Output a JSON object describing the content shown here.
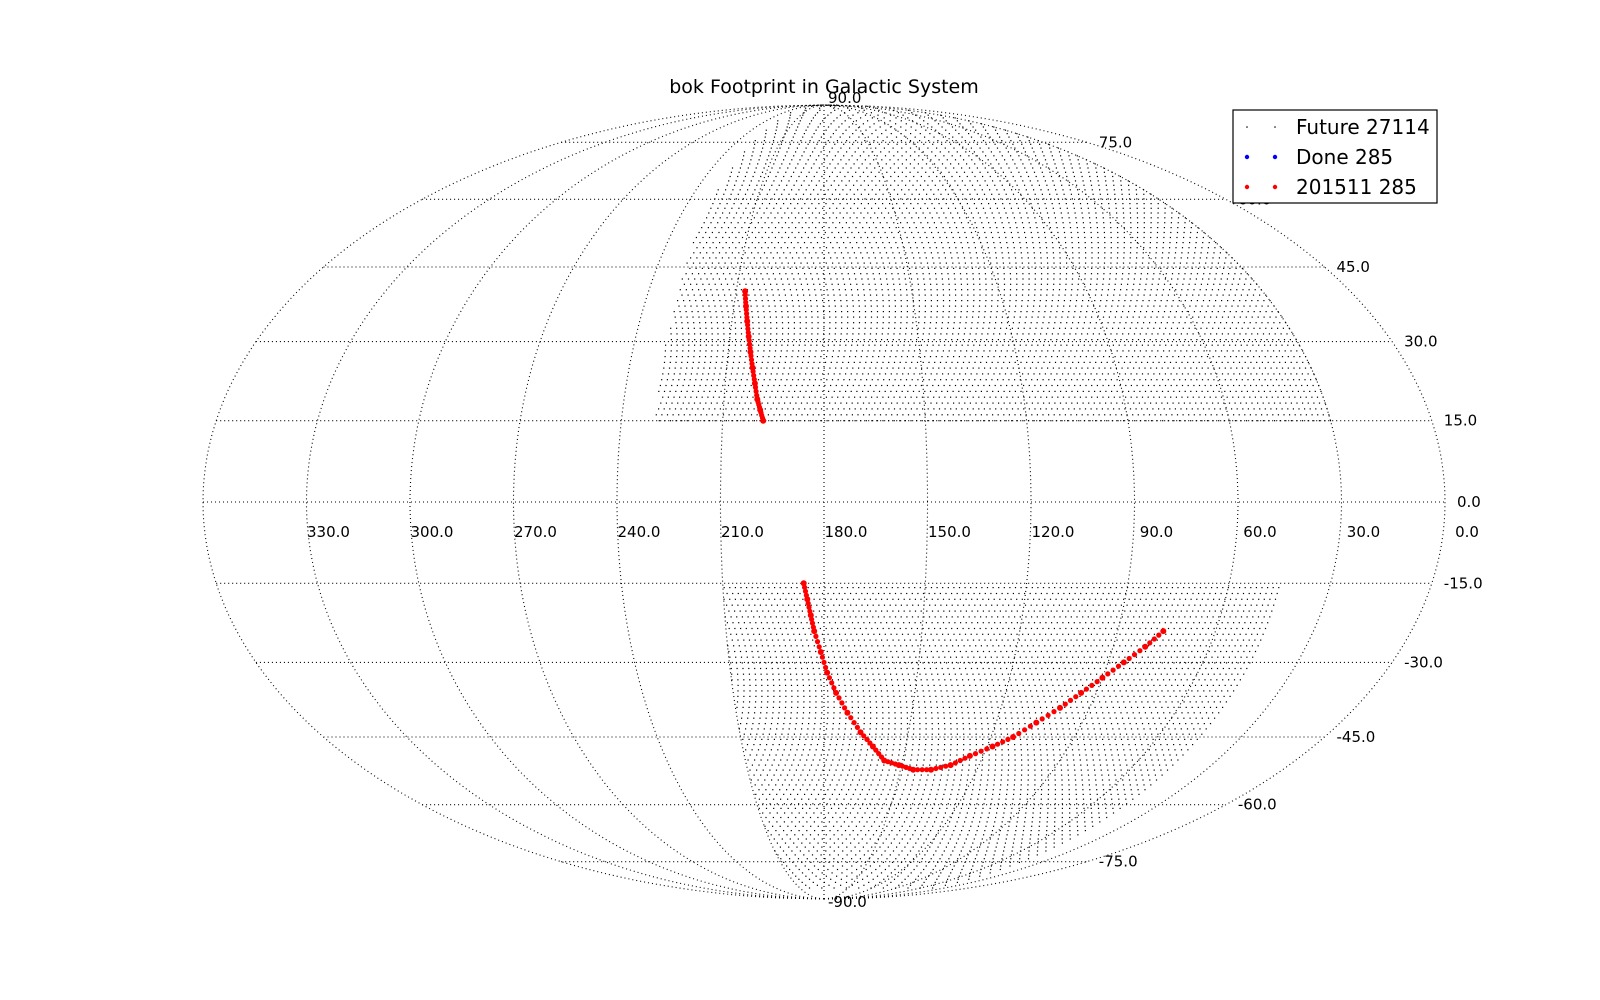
{
  "chart_data": {
    "type": "scatter",
    "title": "bok  Footprint in Galactic System",
    "projection": "mollweide",
    "xlabel": "",
    "ylabel": "",
    "grid": true,
    "x_range": [
      0,
      360
    ],
    "y_range": [
      -90,
      90
    ],
    "longitude_ticks": [
      "330.0",
      "300.0",
      "270.0",
      "240.0",
      "210.0",
      "180.0",
      "150.0",
      "120.0",
      "90.0",
      "60.0",
      "30.0",
      "0.0"
    ],
    "latitude_ticks": [
      "90.0",
      "75.0",
      "60.0",
      "45.0",
      "30.0",
      "15.0",
      "0.0",
      "-15.0",
      "-30.0",
      "-45.0",
      "-60.0",
      "-75.0",
      "-90.0"
    ],
    "legend_placement": "top-right",
    "series": [
      {
        "name": "Future 27114",
        "color": "#000000",
        "marker": "small dot",
        "regions": [
          {
            "l_range": [
              30,
              230
            ],
            "b_range": [
              15,
              90
            ]
          },
          {
            "l_range": [
              45,
              210
            ],
            "b_range": [
              -84,
              -15
            ]
          }
        ]
      },
      {
        "name": "Done 285",
        "color": "#0000ff",
        "marker": "dot",
        "points": []
      },
      {
        "name": "201511 285",
        "color": "#ff0000",
        "marker": "dot",
        "points": [
          {
            "l": 207,
            "b": 40
          },
          {
            "l": 206,
            "b": 37
          },
          {
            "l": 205,
            "b": 34
          },
          {
            "l": 204,
            "b": 31
          },
          {
            "l": 203,
            "b": 28
          },
          {
            "l": 202,
            "b": 25
          },
          {
            "l": 201,
            "b": 22
          },
          {
            "l": 200,
            "b": 19
          },
          {
            "l": 199,
            "b": 17
          },
          {
            "l": 198,
            "b": 15
          },
          {
            "l": 186,
            "b": -15
          },
          {
            "l": 185,
            "b": -18
          },
          {
            "l": 184,
            "b": -21
          },
          {
            "l": 183,
            "b": -24
          },
          {
            "l": 181,
            "b": -28
          },
          {
            "l": 179,
            "b": -32
          },
          {
            "l": 176,
            "b": -36
          },
          {
            "l": 172,
            "b": -40
          },
          {
            "l": 167,
            "b": -44
          },
          {
            "l": 162,
            "b": -47
          },
          {
            "l": 157,
            "b": -50
          },
          {
            "l": 151,
            "b": -51
          },
          {
            "l": 145,
            "b": -52
          },
          {
            "l": 138,
            "b": -52
          },
          {
            "l": 131,
            "b": -51
          },
          {
            "l": 125,
            "b": -49
          },
          {
            "l": 118,
            "b": -47
          },
          {
            "l": 112,
            "b": -45
          },
          {
            "l": 106,
            "b": -42
          },
          {
            "l": 100,
            "b": -39
          },
          {
            "l": 95,
            "b": -36
          },
          {
            "l": 90,
            "b": -33
          },
          {
            "l": 85,
            "b": -30
          },
          {
            "l": 80,
            "b": -27
          },
          {
            "l": 76,
            "b": -24
          }
        ]
      }
    ]
  }
}
